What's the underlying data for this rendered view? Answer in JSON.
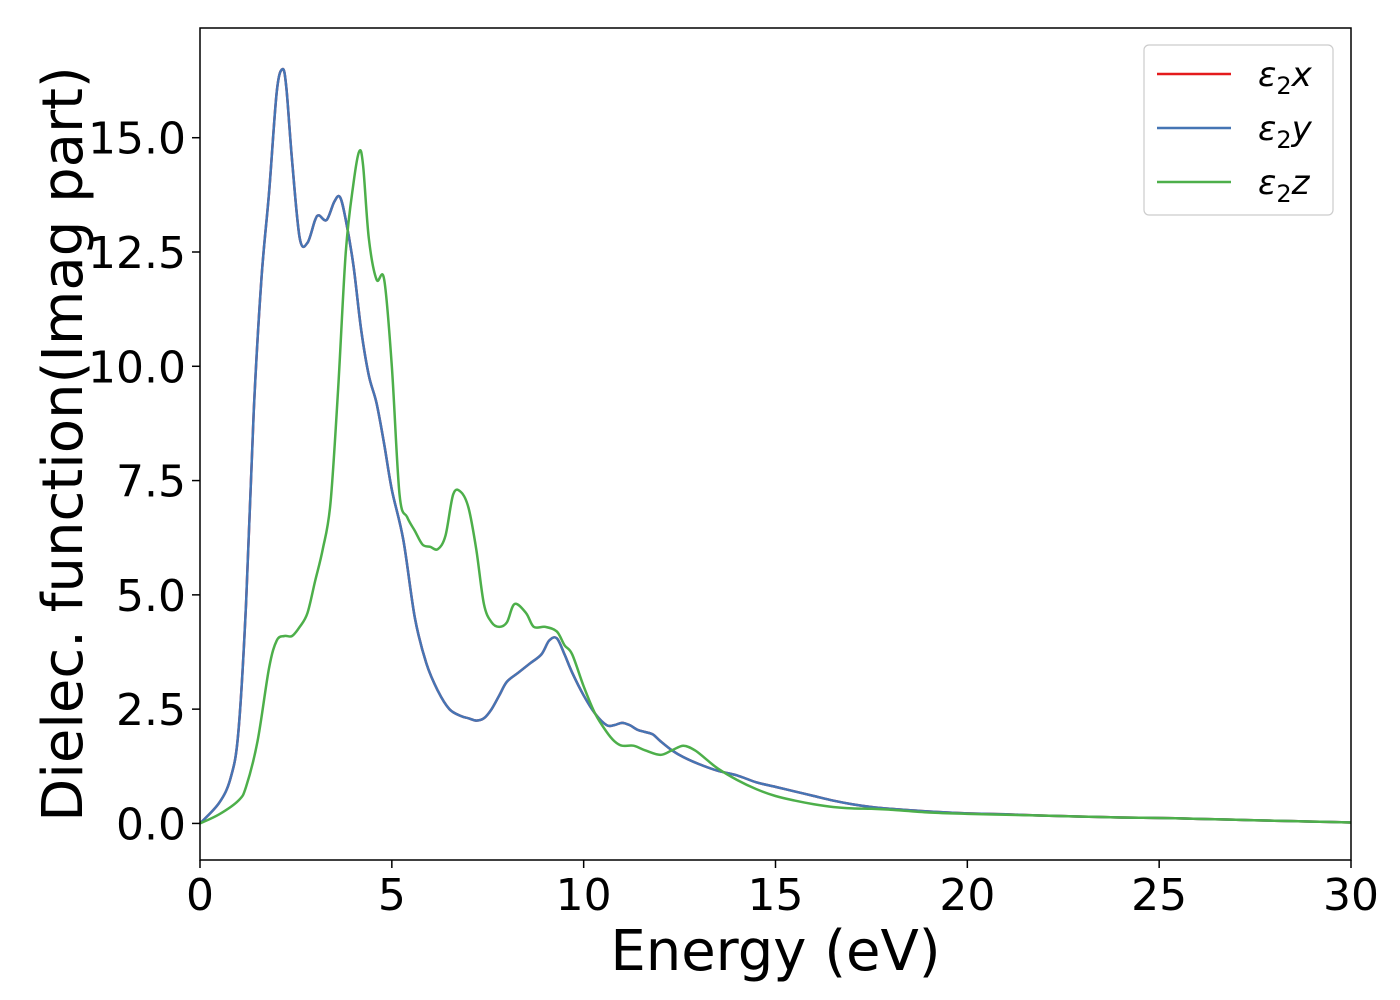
{
  "chart_data": {
    "type": "line",
    "title": "",
    "xlabel": "Energy (eV)",
    "ylabel": "Dielec. function(Imag part)",
    "xlim": [
      0,
      30
    ],
    "ylim": [
      -0.8,
      17.4
    ],
    "xticks": [
      0,
      5,
      10,
      15,
      20,
      25,
      30
    ],
    "xtick_labels": [
      "0",
      "5",
      "10",
      "15",
      "20",
      "25",
      "30"
    ],
    "yticks": [
      0.0,
      2.5,
      5.0,
      7.5,
      10.0,
      12.5,
      15.0
    ],
    "ytick_labels": [
      "0.0",
      "2.5",
      "5.0",
      "7.5",
      "10.0",
      "12.5",
      "15.0"
    ],
    "grid": false,
    "legend_position": "top-right",
    "series": [
      {
        "name": "ε2x",
        "legend_main": "ε",
        "legend_sub": "2",
        "legend_suffix": "x",
        "color": "#e41a1c",
        "x": [
          0,
          0.5,
          0.8,
          1.0,
          1.2,
          1.4,
          1.6,
          1.8,
          2.0,
          2.15,
          2.25,
          2.4,
          2.6,
          2.8,
          3.0,
          3.1,
          3.3,
          3.5,
          3.65,
          3.8,
          4.0,
          4.2,
          4.4,
          4.6,
          4.8,
          5.0,
          5.3,
          5.6,
          5.9,
          6.2,
          6.5,
          6.8,
          7.0,
          7.2,
          7.4,
          7.6,
          7.8,
          8.0,
          8.3,
          8.6,
          8.9,
          9.1,
          9.3,
          9.5,
          9.7,
          10.0,
          10.3,
          10.6,
          10.8,
          11.0,
          11.2,
          11.4,
          11.6,
          11.8,
          12.0,
          12.3,
          12.6,
          13.0,
          13.5,
          14.0,
          14.5,
          15.0,
          15.5,
          16.0,
          16.5,
          17.0,
          17.5,
          18.0,
          19.0,
          20.0,
          21.0,
          22.0,
          23.0,
          24.0,
          25.0,
          26.0,
          27.0,
          28.0,
          29.0,
          30.0
        ],
        "y": [
          0.0,
          0.45,
          1.0,
          2.0,
          4.8,
          9.0,
          11.9,
          13.8,
          16.0,
          16.5,
          16.1,
          14.5,
          12.8,
          12.7,
          13.2,
          13.3,
          13.2,
          13.6,
          13.7,
          13.2,
          12.2,
          10.8,
          9.8,
          9.2,
          8.3,
          7.3,
          6.2,
          4.5,
          3.5,
          2.9,
          2.5,
          2.35,
          2.3,
          2.25,
          2.3,
          2.5,
          2.8,
          3.1,
          3.3,
          3.5,
          3.7,
          4.0,
          4.05,
          3.7,
          3.3,
          2.8,
          2.4,
          2.15,
          2.15,
          2.2,
          2.15,
          2.05,
          2.0,
          1.95,
          1.8,
          1.6,
          1.45,
          1.3,
          1.15,
          1.05,
          0.9,
          0.8,
          0.7,
          0.6,
          0.5,
          0.42,
          0.36,
          0.32,
          0.26,
          0.22,
          0.2,
          0.17,
          0.15,
          0.13,
          0.12,
          0.1,
          0.08,
          0.06,
          0.04,
          0.02
        ]
      },
      {
        "name": "ε2y",
        "legend_main": "ε",
        "legend_sub": "2",
        "legend_suffix": "y",
        "color": "#4575b4",
        "x": [
          0,
          0.5,
          0.8,
          1.0,
          1.2,
          1.4,
          1.6,
          1.8,
          2.0,
          2.15,
          2.25,
          2.4,
          2.6,
          2.8,
          3.0,
          3.1,
          3.3,
          3.5,
          3.65,
          3.8,
          4.0,
          4.2,
          4.4,
          4.6,
          4.8,
          5.0,
          5.3,
          5.6,
          5.9,
          6.2,
          6.5,
          6.8,
          7.0,
          7.2,
          7.4,
          7.6,
          7.8,
          8.0,
          8.3,
          8.6,
          8.9,
          9.1,
          9.3,
          9.5,
          9.7,
          10.0,
          10.3,
          10.6,
          10.8,
          11.0,
          11.2,
          11.4,
          11.6,
          11.8,
          12.0,
          12.3,
          12.6,
          13.0,
          13.5,
          14.0,
          14.5,
          15.0,
          15.5,
          16.0,
          16.5,
          17.0,
          17.5,
          18.0,
          19.0,
          20.0,
          21.0,
          22.0,
          23.0,
          24.0,
          25.0,
          26.0,
          27.0,
          28.0,
          29.0,
          30.0
        ],
        "y": [
          0.0,
          0.45,
          1.0,
          2.0,
          4.8,
          9.0,
          11.9,
          13.8,
          16.0,
          16.5,
          16.1,
          14.5,
          12.8,
          12.7,
          13.2,
          13.3,
          13.2,
          13.6,
          13.7,
          13.2,
          12.2,
          10.8,
          9.8,
          9.2,
          8.3,
          7.3,
          6.2,
          4.5,
          3.5,
          2.9,
          2.5,
          2.35,
          2.3,
          2.25,
          2.3,
          2.5,
          2.8,
          3.1,
          3.3,
          3.5,
          3.7,
          4.0,
          4.05,
          3.7,
          3.3,
          2.8,
          2.4,
          2.15,
          2.15,
          2.2,
          2.15,
          2.05,
          2.0,
          1.95,
          1.8,
          1.6,
          1.45,
          1.3,
          1.15,
          1.05,
          0.9,
          0.8,
          0.7,
          0.6,
          0.5,
          0.42,
          0.36,
          0.32,
          0.26,
          0.22,
          0.2,
          0.17,
          0.15,
          0.13,
          0.12,
          0.1,
          0.08,
          0.06,
          0.04,
          0.02
        ]
      },
      {
        "name": "ε2z",
        "legend_main": "ε",
        "legend_sub": "2",
        "legend_suffix": "z",
        "color": "#4daf4a",
        "x": [
          0,
          0.5,
          1.0,
          1.2,
          1.5,
          1.8,
          2.0,
          2.2,
          2.4,
          2.6,
          2.8,
          3.0,
          3.2,
          3.4,
          3.6,
          3.8,
          4.0,
          4.15,
          4.25,
          4.4,
          4.6,
          4.8,
          5.0,
          5.2,
          5.4,
          5.6,
          5.8,
          6.0,
          6.2,
          6.4,
          6.6,
          6.8,
          7.0,
          7.2,
          7.4,
          7.6,
          7.8,
          8.0,
          8.2,
          8.5,
          8.7,
          9.0,
          9.3,
          9.5,
          9.7,
          10.0,
          10.3,
          10.6,
          10.8,
          11.0,
          11.3,
          11.6,
          12.0,
          12.3,
          12.6,
          12.9,
          13.2,
          13.5,
          14.0,
          14.5,
          15.0,
          15.5,
          16.0,
          16.5,
          17.0,
          17.5,
          18.0,
          19.0,
          20.0,
          21.0,
          22.0,
          23.0,
          24.0,
          25.0,
          26.0,
          27.0,
          28.0,
          29.0,
          30.0
        ],
        "y": [
          0.0,
          0.2,
          0.5,
          0.8,
          1.8,
          3.4,
          4.0,
          4.1,
          4.1,
          4.3,
          4.6,
          5.3,
          6.0,
          7.0,
          9.5,
          12.5,
          14.0,
          14.7,
          14.4,
          12.8,
          11.9,
          11.9,
          10.0,
          7.2,
          6.7,
          6.4,
          6.1,
          6.05,
          6.0,
          6.3,
          7.2,
          7.25,
          6.9,
          6.0,
          4.8,
          4.4,
          4.3,
          4.4,
          4.8,
          4.6,
          4.3,
          4.3,
          4.2,
          3.9,
          3.7,
          3.0,
          2.4,
          2.0,
          1.8,
          1.7,
          1.7,
          1.6,
          1.5,
          1.6,
          1.7,
          1.6,
          1.4,
          1.2,
          0.95,
          0.75,
          0.6,
          0.5,
          0.42,
          0.36,
          0.33,
          0.32,
          0.3,
          0.24,
          0.21,
          0.19,
          0.17,
          0.15,
          0.13,
          0.12,
          0.1,
          0.08,
          0.06,
          0.04,
          0.02
        ]
      }
    ]
  }
}
